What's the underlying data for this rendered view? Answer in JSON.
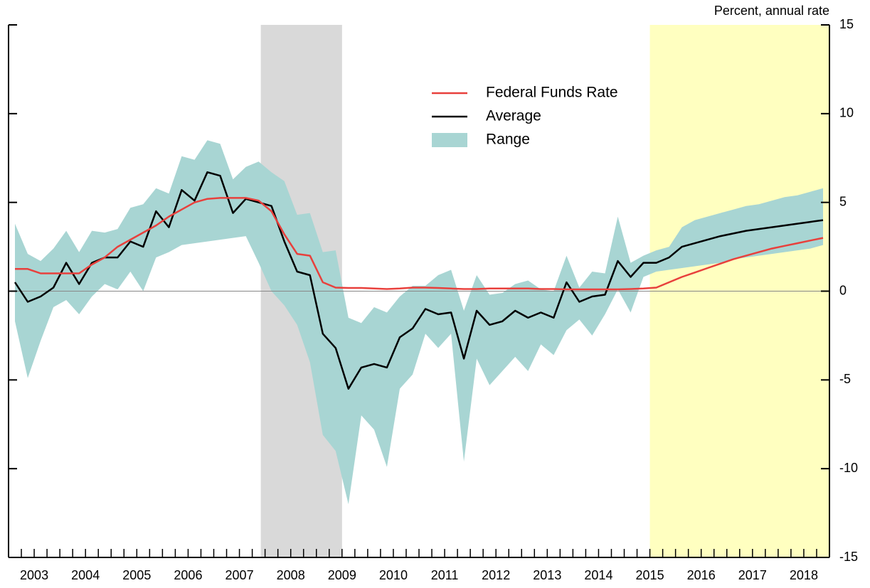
{
  "chart_data": {
    "type": "line",
    "y_axis_label": "Percent, annual rate",
    "x": [
      2003.125,
      2003.375,
      2003.625,
      2003.875,
      2004.125,
      2004.375,
      2004.625,
      2004.875,
      2005.125,
      2005.375,
      2005.625,
      2005.875,
      2006.125,
      2006.375,
      2006.625,
      2006.875,
      2007.125,
      2007.375,
      2007.625,
      2007.875,
      2008.125,
      2008.375,
      2008.625,
      2008.875,
      2009.125,
      2009.375,
      2009.625,
      2009.875,
      2010.125,
      2010.375,
      2010.625,
      2010.875,
      2011.125,
      2011.375,
      2011.625,
      2011.875,
      2012.125,
      2012.375,
      2012.625,
      2012.875,
      2013.125,
      2013.375,
      2013.625,
      2013.875,
      2014.125,
      2014.375,
      2014.625,
      2014.875,
      2015.125,
      2015.375,
      2015.625,
      2015.875,
      2016.125,
      2016.375,
      2016.625,
      2016.875,
      2017.125,
      2017.375,
      2017.625,
      2017.875,
      2018.125,
      2018.375,
      2018.625,
      2018.875
    ],
    "series": [
      {
        "name": "Federal Funds Rate",
        "color": "#e8403c",
        "values": [
          1.25,
          1.25,
          1.0,
          1.0,
          1.0,
          1.0,
          1.5,
          1.9,
          2.5,
          2.9,
          3.3,
          3.7,
          4.2,
          4.6,
          5.0,
          5.2,
          5.25,
          5.25,
          5.25,
          5.1,
          4.5,
          3.2,
          2.1,
          2.0,
          0.5,
          0.2,
          0.18,
          0.18,
          0.15,
          0.12,
          0.15,
          0.2,
          0.2,
          0.18,
          0.15,
          0.12,
          0.12,
          0.15,
          0.15,
          0.15,
          0.15,
          0.12,
          0.12,
          0.1,
          0.1,
          0.1,
          0.1,
          0.1,
          0.12,
          0.15,
          0.2,
          0.5,
          0.8,
          1.05,
          1.3,
          1.55,
          1.8,
          2.0,
          2.2,
          2.4,
          2.55,
          2.7,
          2.85,
          3.0
        ]
      },
      {
        "name": "Average",
        "color": "#000000",
        "values": [
          0.5,
          -0.6,
          -0.3,
          0.2,
          1.6,
          0.4,
          1.6,
          1.9,
          1.9,
          2.8,
          2.5,
          4.5,
          3.6,
          5.7,
          5.1,
          6.7,
          6.5,
          4.4,
          5.2,
          5.0,
          4.8,
          2.8,
          1.1,
          0.9,
          -2.4,
          -3.2,
          -5.5,
          -4.3,
          -4.1,
          -4.3,
          -2.6,
          -2.1,
          -1.0,
          -1.3,
          -1.2,
          -3.8,
          -1.1,
          -1.9,
          -1.7,
          -1.1,
          -1.5,
          -1.2,
          -1.5,
          0.5,
          -0.6,
          -0.3,
          -0.2,
          1.7,
          0.8,
          1.6,
          1.6,
          1.9,
          2.5,
          2.7,
          2.9,
          3.1,
          3.25,
          3.4,
          3.5,
          3.6,
          3.7,
          3.8,
          3.9,
          4.0
        ]
      },
      {
        "name": "Range",
        "color": "#a8d5d3",
        "high": [
          3.8,
          2.1,
          1.7,
          2.4,
          3.4,
          2.2,
          3.4,
          3.3,
          3.5,
          4.7,
          4.9,
          5.8,
          5.5,
          7.6,
          7.4,
          8.5,
          8.3,
          6.3,
          7.0,
          7.3,
          6.7,
          6.2,
          4.3,
          4.4,
          2.2,
          2.3,
          -1.5,
          -1.8,
          -0.9,
          -1.2,
          -0.3,
          0.3,
          0.3,
          0.9,
          1.2,
          -1.1,
          0.9,
          -0.2,
          -0.1,
          0.4,
          0.6,
          0.1,
          0.0,
          2.0,
          0.2,
          1.1,
          1.0,
          4.2,
          1.6,
          2.0,
          2.3,
          2.5,
          3.6,
          4.0,
          4.2,
          4.4,
          4.6,
          4.8,
          4.9,
          5.1,
          5.3,
          5.4,
          5.6,
          5.8
        ],
        "low": [
          -1.7,
          -4.9,
          -2.8,
          -0.9,
          -0.5,
          -1.3,
          -0.3,
          0.4,
          0.1,
          1.1,
          0.0,
          1.9,
          2.2,
          2.6,
          2.7,
          2.8,
          2.9,
          3.0,
          3.1,
          1.6,
          0.0,
          -0.8,
          -1.9,
          -4.0,
          -8.1,
          -9.0,
          -12.0,
          -7.0,
          -7.8,
          -9.9,
          -5.5,
          -4.7,
          -2.4,
          -3.2,
          -2.4,
          -9.6,
          -3.8,
          -5.3,
          -4.5,
          -3.7,
          -4.5,
          -3.0,
          -3.6,
          -2.2,
          -1.6,
          -2.5,
          -1.3,
          0.1,
          -1.2,
          0.8,
          1.1,
          1.2,
          1.3,
          1.4,
          1.5,
          1.6,
          1.8,
          1.9,
          2.0,
          2.1,
          2.2,
          2.3,
          2.4,
          2.6
        ]
      }
    ],
    "xlim": [
      2003,
      2019
    ],
    "xticks": [
      {
        "value": 2003.5,
        "label": "2003"
      },
      {
        "value": 2004.5,
        "label": "2004"
      },
      {
        "value": 2005.5,
        "label": "2005"
      },
      {
        "value": 2006.5,
        "label": "2006"
      },
      {
        "value": 2007.5,
        "label": "2007"
      },
      {
        "value": 2008.5,
        "label": "2008"
      },
      {
        "value": 2009.5,
        "label": "2009"
      },
      {
        "value": 2010.5,
        "label": "2010"
      },
      {
        "value": 2011.5,
        "label": "2011"
      },
      {
        "value": 2012.5,
        "label": "2012"
      },
      {
        "value": 2013.5,
        "label": "2013"
      },
      {
        "value": 2014.5,
        "label": "2014"
      },
      {
        "value": 2015.5,
        "label": "2015"
      },
      {
        "value": 2016.5,
        "label": "2016"
      },
      {
        "value": 2017.5,
        "label": "2017"
      },
      {
        "value": 2018.5,
        "label": "2018"
      }
    ],
    "ylim": [
      -15,
      15
    ],
    "yticks": [
      15,
      10,
      5,
      0,
      -5,
      -10,
      -15
    ],
    "zero_line": true,
    "shaded_regions": [
      {
        "x": [
          2007.917,
          2009.5
        ],
        "color": "#d9d9d9"
      },
      {
        "x": [
          2015.5,
          2019
        ],
        "color": "#ffffc0"
      }
    ],
    "legend": "upper-center"
  }
}
